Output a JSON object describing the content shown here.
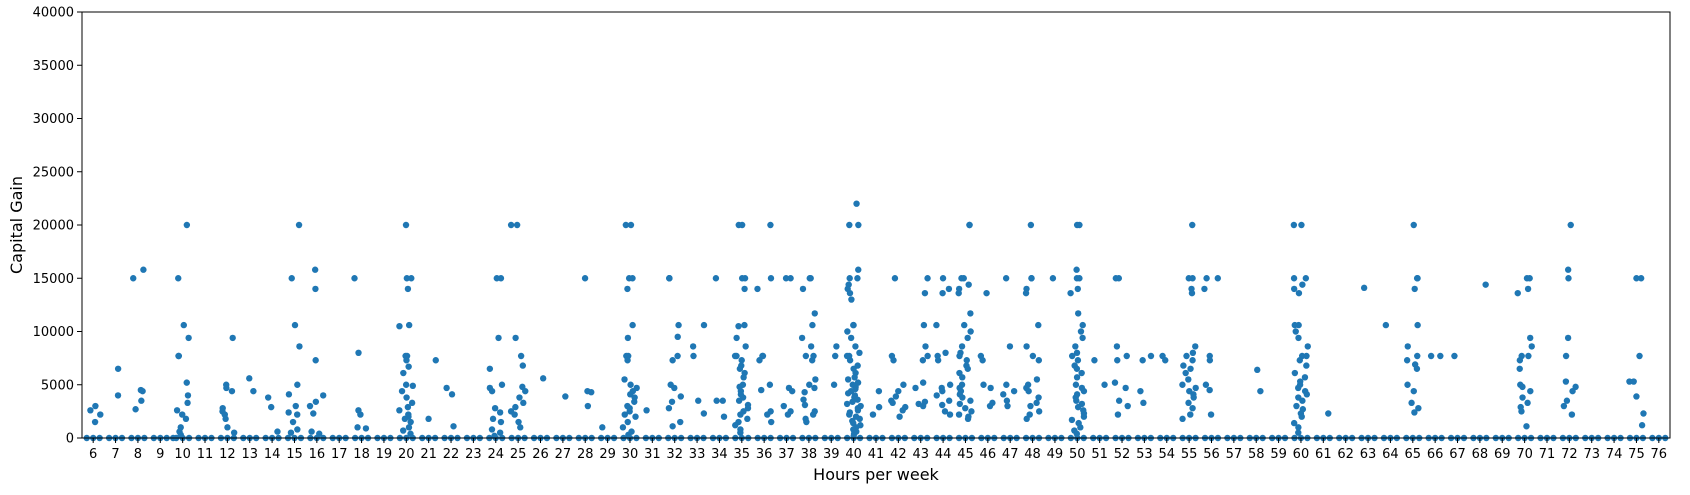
{
  "chart_data": {
    "type": "scatter",
    "title": "",
    "xlabel": "Hours per week",
    "ylabel": "Capital Gain",
    "ylim": [
      0,
      40000
    ],
    "yticks": [
      0,
      5000,
      10000,
      15000,
      20000,
      25000,
      30000,
      35000,
      40000
    ],
    "grid": false,
    "categories": [
      "6",
      "7",
      "8",
      "9",
      "10",
      "11",
      "12",
      "13",
      "14",
      "15",
      "16",
      "17",
      "18",
      "19",
      "20",
      "21",
      "22",
      "23",
      "24",
      "25",
      "26",
      "27",
      "28",
      "29",
      "30",
      "31",
      "32",
      "33",
      "34",
      "35",
      "36",
      "37",
      "38",
      "39",
      "40",
      "41",
      "42",
      "43",
      "44",
      "45",
      "46",
      "47",
      "48",
      "49",
      "50",
      "51",
      "52",
      "53",
      "54",
      "55",
      "56",
      "57",
      "58",
      "59",
      "60",
      "61",
      "62",
      "63",
      "64",
      "65",
      "66",
      "67",
      "68",
      "69",
      "70",
      "71",
      "72",
      "73",
      "74",
      "75",
      "76"
    ],
    "point_color": "#1f77b4",
    "points": [
      {
        "x": "6",
        "y": [
          0,
          0,
          0,
          3000,
          2600,
          1500,
          2200
        ]
      },
      {
        "x": "7",
        "y": [
          0,
          0,
          0,
          6500,
          4000
        ]
      },
      {
        "x": "8",
        "y": [
          0,
          0,
          0,
          15000,
          15800,
          4500,
          4400,
          3500,
          2700
        ]
      },
      {
        "x": "9",
        "y": [
          0,
          0,
          0,
          0
        ]
      },
      {
        "x": "10",
        "y": [
          0,
          0,
          0,
          20000,
          15000,
          10600,
          7700,
          7700,
          5200,
          4000,
          3300,
          2600,
          2200,
          1800,
          1000,
          600,
          300,
          9400
        ]
      },
      {
        "x": "11",
        "y": [
          0,
          0,
          0
        ]
      },
      {
        "x": "12",
        "y": [
          0,
          0,
          0,
          9400,
          5000,
          4700,
          4400,
          2800,
          2500,
          2200,
          1800,
          1000,
          500
        ]
      },
      {
        "x": "13",
        "y": [
          0,
          0,
          0,
          5600,
          4400
        ]
      },
      {
        "x": "14",
        "y": [
          0,
          0,
          0,
          3800,
          2900,
          600
        ]
      },
      {
        "x": "15",
        "y": [
          0,
          0,
          0,
          20000,
          15000,
          10600,
          8600,
          5000,
          4100,
          3000,
          2400,
          2200,
          1500,
          800,
          500
        ]
      },
      {
        "x": "16",
        "y": [
          0,
          0,
          0,
          15800,
          14000,
          7300,
          4000,
          3400,
          3000,
          2300,
          600,
          400
        ]
      },
      {
        "x": "17",
        "y": [
          0,
          0,
          0
        ]
      },
      {
        "x": "18",
        "y": [
          0,
          0,
          0,
          15000,
          8000,
          2600,
          2200,
          1000,
          900
        ]
      },
      {
        "x": "19",
        "y": [
          0,
          0,
          0
        ]
      },
      {
        "x": "20",
        "y": [
          0,
          0,
          0,
          20000,
          15000,
          15000,
          14000,
          10600,
          10500,
          7700,
          7700,
          7300,
          6700,
          6100,
          5000,
          4900,
          4400,
          3800,
          3300,
          2900,
          2600,
          2200,
          2000,
          1800,
          1500,
          1000,
          700,
          400
        ]
      },
      {
        "x": "21",
        "y": [
          0,
          0,
          0,
          7300,
          1800
        ]
      },
      {
        "x": "22",
        "y": [
          0,
          0,
          0,
          4700,
          4100,
          1100
        ]
      },
      {
        "x": "23",
        "y": [
          0,
          0,
          0
        ]
      },
      {
        "x": "24",
        "y": [
          0,
          0,
          0,
          15000,
          15000,
          9400,
          6500,
          5000,
          4700,
          4400,
          2800,
          2400,
          1800,
          1500,
          800,
          500,
          200
        ]
      },
      {
        "x": "25",
        "y": [
          0,
          0,
          0,
          20000,
          20000,
          9400,
          7700,
          6800,
          4800,
          4400,
          3800,
          3300,
          2900,
          2500,
          2200,
          1500,
          1000
        ]
      },
      {
        "x": "26",
        "y": [
          0,
          0,
          0,
          5600
        ]
      },
      {
        "x": "27",
        "y": [
          0,
          0,
          0,
          3900
        ]
      },
      {
        "x": "28",
        "y": [
          0,
          0,
          0,
          15000,
          4400,
          4300,
          3000
        ]
      },
      {
        "x": "29",
        "y": [
          0,
          0,
          0,
          1000
        ]
      },
      {
        "x": "30",
        "y": [
          0,
          0,
          0,
          20000,
          20000,
          15000,
          15000,
          14000,
          10600,
          9400,
          7700,
          7700,
          7300,
          5500,
          5000,
          4700,
          4400,
          4100,
          3800,
          3400,
          3000,
          2800,
          2500,
          2200,
          2000,
          1500,
          1000,
          600,
          300
        ]
      },
      {
        "x": "31",
        "y": [
          0,
          0,
          0,
          2600
        ]
      },
      {
        "x": "32",
        "y": [
          0,
          0,
          0,
          15000,
          15000,
          15000,
          10600,
          9500,
          7700,
          7300,
          5000,
          4700,
          3900,
          3400,
          2800,
          1500,
          1100
        ]
      },
      {
        "x": "33",
        "y": [
          0,
          0,
          0,
          10600,
          8600,
          7700,
          3500,
          2300
        ]
      },
      {
        "x": "34",
        "y": [
          0,
          0,
          0,
          15000,
          3500,
          3500,
          2000
        ]
      },
      {
        "x": "35",
        "y": [
          0,
          0,
          0,
          20000,
          20000,
          15000,
          15000,
          14000,
          10600,
          10500,
          9400,
          8600,
          7700,
          7700,
          7300,
          6800,
          6500,
          6100,
          5700,
          5000,
          4800,
          4400,
          4100,
          3800,
          3500,
          3100,
          2800,
          2500,
          2200,
          1800,
          1500,
          1200,
          800,
          500
        ]
      },
      {
        "x": "36",
        "y": [
          0,
          0,
          0,
          20000,
          15000,
          14000,
          7700,
          7700,
          7300,
          5000,
          4500,
          2500,
          2200,
          1500
        ]
      },
      {
        "x": "37",
        "y": [
          0,
          0,
          0,
          15000,
          15000,
          4700,
          4400,
          3000,
          2500,
          2200
        ]
      },
      {
        "x": "38",
        "y": [
          0,
          0,
          0,
          15000,
          15000,
          14000,
          11700,
          10600,
          9400,
          8600,
          7700,
          7700,
          7300,
          5500,
          5000,
          4700,
          4300,
          3600,
          3100,
          2500,
          2200,
          1800,
          1500
        ]
      },
      {
        "x": "39",
        "y": [
          0,
          0,
          0,
          8600,
          7700,
          5000
        ]
      },
      {
        "x": "40",
        "y": [
          0,
          0,
          0,
          22000,
          20000,
          20000,
          15800,
          15000,
          15000,
          14400,
          14000,
          13600,
          13000,
          10600,
          10600,
          10000,
          9400,
          8600,
          8000,
          7700,
          7700,
          7300,
          6800,
          6500,
          6100,
          5700,
          5500,
          5200,
          5000,
          4800,
          4600,
          4400,
          4200,
          4000,
          3800,
          3600,
          3400,
          3200,
          3000,
          2800,
          2600,
          2400,
          2200,
          2000,
          1800,
          1600,
          1400,
          1200,
          1000,
          800,
          600,
          400,
          200
        ]
      },
      {
        "x": "41",
        "y": [
          0,
          0,
          0,
          4400,
          2900,
          2200
        ]
      },
      {
        "x": "42",
        "y": [
          0,
          0,
          0,
          15000,
          7700,
          7300,
          5000,
          4400,
          3900,
          3500,
          3300,
          2900,
          2600,
          2000
        ]
      },
      {
        "x": "43",
        "y": [
          0,
          0,
          0,
          15000,
          13600,
          10600,
          8600,
          7700,
          7300,
          5200,
          4700,
          3400,
          3200,
          3000
        ]
      },
      {
        "x": "44",
        "y": [
          0,
          0,
          0,
          15000,
          14000,
          13600,
          10600,
          8000,
          7700,
          7300,
          5000,
          4700,
          4400,
          4000,
          3500,
          3100,
          2500,
          2200
        ]
      },
      {
        "x": "45",
        "y": [
          0,
          0,
          0,
          20000,
          20000,
          15000,
          15000,
          14400,
          14000,
          13600,
          11700,
          10600,
          10000,
          9400,
          8600,
          8000,
          7700,
          7300,
          6800,
          6500,
          6100,
          5700,
          5000,
          4700,
          4400,
          4100,
          3800,
          3500,
          3200,
          2800,
          2500,
          2200,
          2000,
          1800
        ]
      },
      {
        "x": "46",
        "y": [
          0,
          0,
          0,
          13600,
          7700,
          7300,
          5000,
          4700,
          3300,
          3000
        ]
      },
      {
        "x": "47",
        "y": [
          0,
          0,
          0,
          15000,
          8600,
          5000,
          4400,
          4100,
          3500,
          3000
        ]
      },
      {
        "x": "48",
        "y": [
          0,
          0,
          0,
          20000,
          15000,
          15000,
          14000,
          13600,
          10600,
          8600,
          7700,
          7300,
          5500,
          5000,
          4700,
          4400,
          3800,
          3300,
          3000,
          2500,
          2200,
          1800
        ]
      },
      {
        "x": "49",
        "y": [
          0,
          0,
          0,
          15000
        ]
      },
      {
        "x": "50",
        "y": [
          0,
          0,
          0,
          20000,
          20000,
          15800,
          15000,
          15000,
          14000,
          13600,
          11700,
          10600,
          10000,
          9400,
          8600,
          8000,
          7700,
          7300,
          6800,
          6500,
          6100,
          5700,
          5000,
          4700,
          4400,
          4100,
          3800,
          3500,
          3200,
          2900,
          2600,
          2300,
          2000,
          1700,
          1400,
          1000,
          700,
          400
        ]
      },
      {
        "x": "51",
        "y": [
          0,
          0,
          0,
          7300,
          5000
        ]
      },
      {
        "x": "52",
        "y": [
          0,
          0,
          0,
          15000,
          15000,
          8600,
          7700,
          7300,
          5200,
          4700,
          3500,
          3000,
          2200
        ]
      },
      {
        "x": "53",
        "y": [
          0,
          0,
          0,
          7700,
          7300,
          4400,
          3300
        ]
      },
      {
        "x": "54",
        "y": [
          0,
          0,
          0,
          7700,
          7300
        ]
      },
      {
        "x": "55",
        "y": [
          0,
          0,
          0,
          20000,
          15000,
          15000,
          14000,
          13600,
          8600,
          8000,
          7700,
          7300,
          6800,
          6500,
          6100,
          5500,
          5000,
          4700,
          4400,
          4100,
          3800,
          3300,
          2800,
          2200,
          1800
        ]
      },
      {
        "x": "56",
        "y": [
          0,
          0,
          0,
          15000,
          15000,
          14000,
          7700,
          7300,
          5000,
          4500,
          2200
        ]
      },
      {
        "x": "57",
        "y": [
          0,
          0,
          0
        ]
      },
      {
        "x": "58",
        "y": [
          0,
          0,
          0,
          6400,
          4400
        ]
      },
      {
        "x": "59",
        "y": [
          0,
          0,
          0
        ]
      },
      {
        "x": "60",
        "y": [
          0,
          0,
          0,
          20000,
          20000,
          15000,
          15000,
          14400,
          14000,
          13600,
          10600,
          10600,
          10000,
          9400,
          8600,
          7700,
          7700,
          7300,
          6800,
          6100,
          5700,
          5300,
          5000,
          4700,
          4400,
          4100,
          3800,
          3500,
          3000,
          2700,
          2300,
          2000,
          1400,
          1000,
          500
        ]
      },
      {
        "x": "61",
        "y": [
          0,
          0,
          0,
          2300
        ]
      },
      {
        "x": "62",
        "y": [
          0,
          0,
          0
        ]
      },
      {
        "x": "63",
        "y": [
          0,
          0,
          0,
          14100
        ]
      },
      {
        "x": "64",
        "y": [
          0,
          0,
          0,
          10600
        ]
      },
      {
        "x": "65",
        "y": [
          0,
          0,
          0,
          20000,
          15000,
          15000,
          14000,
          10600,
          8600,
          7700,
          7300,
          6900,
          6500,
          5000,
          4400,
          3300,
          2800,
          2400
        ]
      },
      {
        "x": "66",
        "y": [
          0,
          0,
          0,
          7700,
          7700
        ]
      },
      {
        "x": "67",
        "y": [
          0,
          0,
          0,
          7700
        ]
      },
      {
        "x": "68",
        "y": [
          0,
          0,
          0,
          14400
        ]
      },
      {
        "x": "69",
        "y": [
          0,
          0,
          0
        ]
      },
      {
        "x": "70",
        "y": [
          0,
          0,
          0,
          15000,
          15000,
          14000,
          13600,
          9400,
          8600,
          7700,
          7700,
          7300,
          6500,
          5000,
          4800,
          4400,
          3800,
          3300,
          2900,
          2500,
          1100
        ]
      },
      {
        "x": "71",
        "y": [
          0,
          0,
          0
        ]
      },
      {
        "x": "72",
        "y": [
          0,
          0,
          0,
          20000,
          15800,
          15000,
          9400,
          7700,
          5300,
          4800,
          4400,
          3500,
          3000,
          2200
        ]
      },
      {
        "x": "73",
        "y": [
          0,
          0,
          0
        ]
      },
      {
        "x": "74",
        "y": [
          0,
          0,
          0
        ]
      },
      {
        "x": "75",
        "y": [
          0,
          0,
          0,
          15000,
          15000,
          7700,
          5300,
          5300,
          3900,
          2300,
          1200
        ]
      },
      {
        "x": "76",
        "y": [
          0,
          0,
          0
        ]
      }
    ]
  }
}
